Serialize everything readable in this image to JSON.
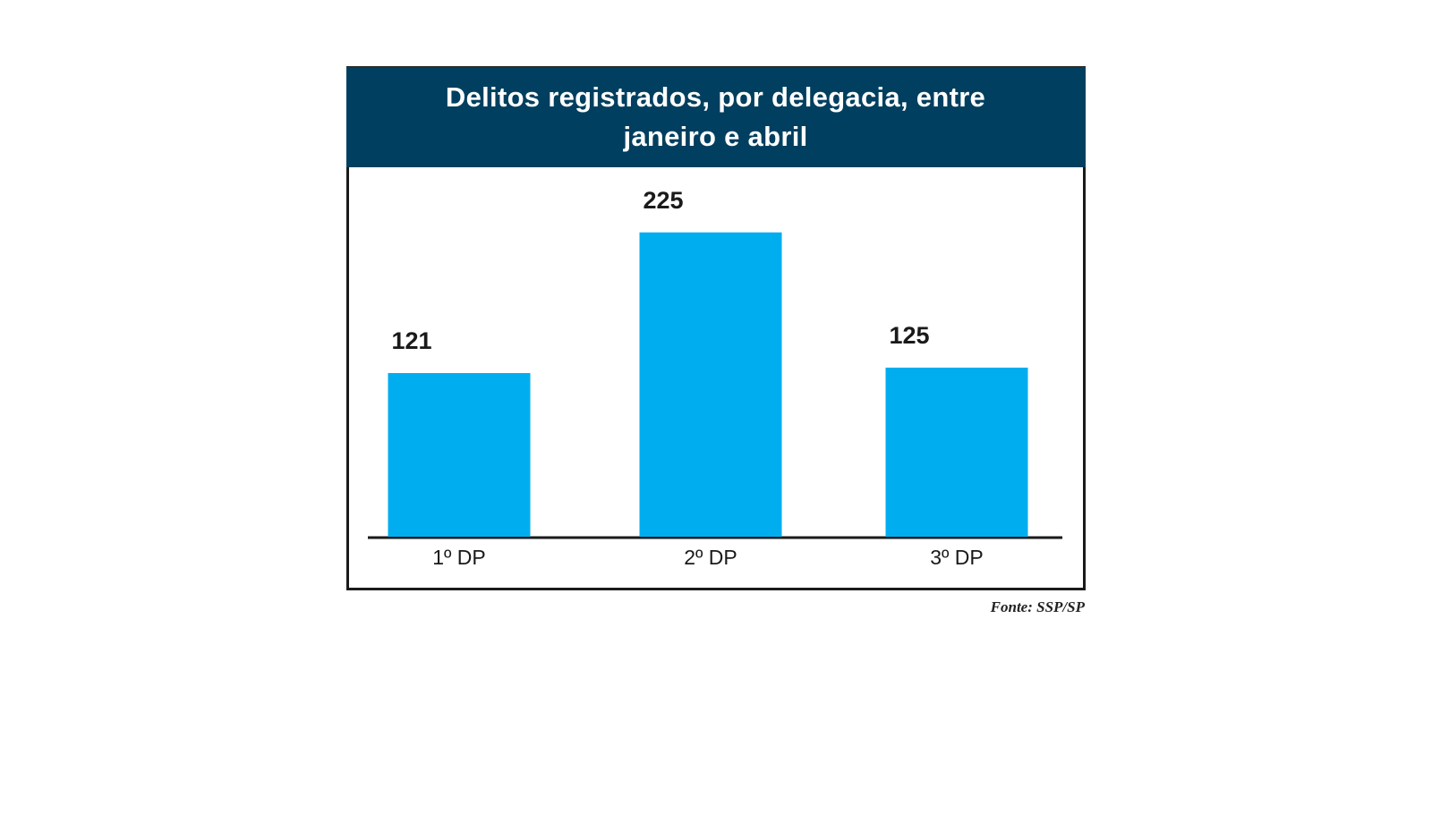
{
  "chart_data": {
    "type": "bar",
    "title": "Delitos registrados, por delegacia, entre janeiro e abril",
    "categories": [
      "1º DP",
      "2º DP",
      "3º DP"
    ],
    "values": [
      121,
      225,
      125
    ],
    "color": "#00aeef",
    "ylim": [
      0,
      250
    ],
    "source": "Fonte: SSP/SP"
  }
}
